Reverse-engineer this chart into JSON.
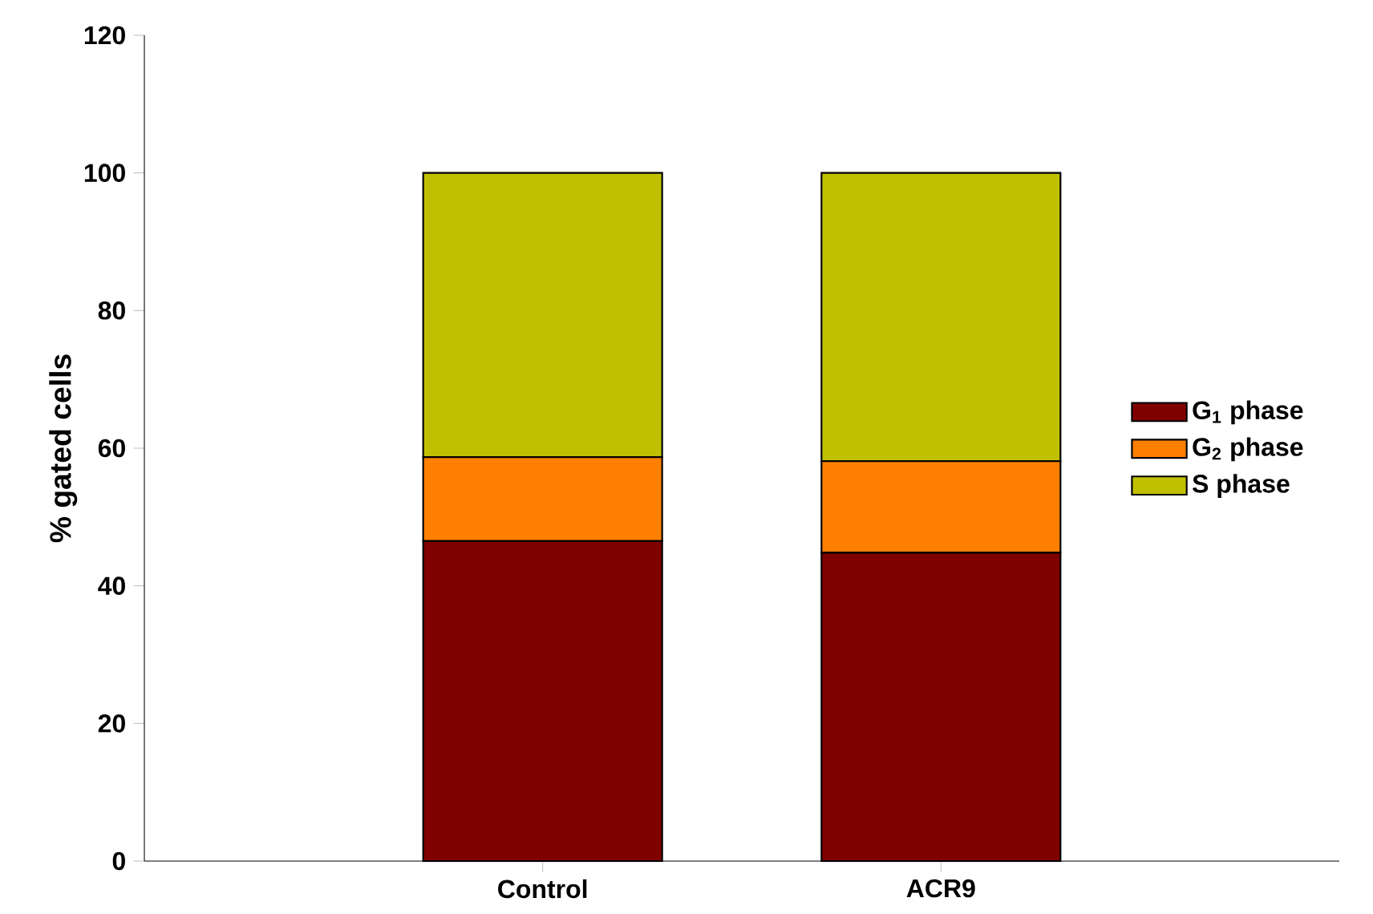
{
  "chart_data": {
    "type": "bar",
    "stacked": true,
    "ylabel": "% gated cells",
    "categories": [
      "Control",
      "ACR9"
    ],
    "series": [
      {
        "name": "G$_{1}$ phase",
        "color": "#800000",
        "values": [
          46.5,
          44.8
        ]
      },
      {
        "name": "G$_{2}$ phase",
        "color": "#ff8000",
        "values": [
          12.2,
          13.3
        ]
      },
      {
        "name": "S phase",
        "color": "#c0c000",
        "values": [
          41.3,
          41.9
        ]
      }
    ],
    "ylim": [
      0,
      120
    ],
    "yticks": [
      0,
      20,
      40,
      60,
      80,
      100,
      120
    ],
    "legend": "right",
    "grid": false
  }
}
